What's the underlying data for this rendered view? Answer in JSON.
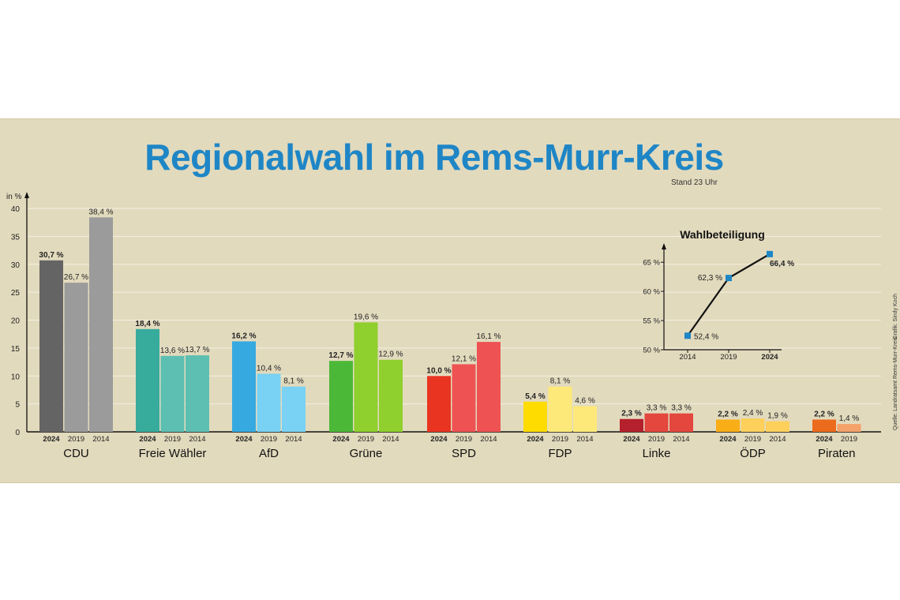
{
  "title": "Regionalwahl im Rems-Murr-Kreis",
  "subtitle": "Stand 23 Uhr",
  "credits": {
    "source": "Quelle: Landratsamt Rems-Murr-Kreis",
    "graphic": "Grafik: Sindy Koch"
  },
  "chart_data": [
    {
      "type": "bar",
      "ylabel": "in %",
      "ylim": [
        0,
        40
      ],
      "yticks": [
        0,
        5,
        10,
        15,
        20,
        25,
        30,
        35,
        40
      ],
      "grid": true,
      "years": [
        "2024",
        "2019",
        "2014"
      ],
      "parties": [
        {
          "name": "CDU",
          "values": [
            30.7,
            26.7,
            38.4
          ],
          "labels": [
            "30,7 %",
            "26,7 %",
            "38,4 %"
          ],
          "colors": [
            "#646464",
            "#9b9b9b",
            "#9b9b9b"
          ]
        },
        {
          "name": "Freie Wähler",
          "values": [
            18.4,
            13.6,
            13.7
          ],
          "labels": [
            "18,4 %",
            "13,6 %",
            "13,7 %"
          ],
          "colors": [
            "#37ab9c",
            "#5cbfb2",
            "#5cbfb2"
          ]
        },
        {
          "name": "AfD",
          "values": [
            16.2,
            10.4,
            8.1
          ],
          "labels": [
            "16,2 %",
            "10,4 %",
            "8,1 %"
          ],
          "colors": [
            "#36a9e1",
            "#79d1f3",
            "#79d1f3"
          ]
        },
        {
          "name": "Grüne",
          "values": [
            12.7,
            19.6,
            12.9
          ],
          "labels": [
            "12,7 %",
            "19,6 %",
            "12,9 %"
          ],
          "colors": [
            "#4cb837",
            "#8fcf2e",
            "#8fcf2e"
          ]
        },
        {
          "name": "SPD",
          "values": [
            10.0,
            12.1,
            16.1
          ],
          "labels": [
            "10,0 %",
            "12,1 %",
            "16,1 %"
          ],
          "colors": [
            "#e93422",
            "#ee5252",
            "#ee5252"
          ]
        },
        {
          "name": "FDP",
          "values": [
            5.4,
            8.1,
            4.6
          ],
          "labels": [
            "5,4 %",
            "8,1 %",
            "4,6 %"
          ],
          "colors": [
            "#ffdc00",
            "#fde97a",
            "#fde97a"
          ]
        },
        {
          "name": "Linke",
          "values": [
            2.3,
            3.3,
            3.3
          ],
          "labels": [
            "2,3 %",
            "3,3 %",
            "3,3 %"
          ],
          "colors": [
            "#b4202b",
            "#e3473d",
            "#e3473d"
          ]
        },
        {
          "name": "ÖDP",
          "values": [
            2.2,
            2.4,
            1.9
          ],
          "labels": [
            "2,2 %",
            "2,4 %",
            "1,9 %"
          ],
          "colors": [
            "#f9ae17",
            "#fdd05c",
            "#fdd05c"
          ]
        },
        {
          "name": "Piraten",
          "values": [
            2.2,
            1.4
          ],
          "labels": [
            "2,2 %",
            "1,4 %"
          ],
          "colors": [
            "#ec6a1c",
            "#f4a16a"
          ]
        }
      ]
    },
    {
      "type": "line",
      "title": "Wahlbeteiligung",
      "x": [
        "2014",
        "2019",
        "2024"
      ],
      "values": [
        52.4,
        62.3,
        66.4
      ],
      "labels": [
        "52,4 %",
        "62,3 %",
        "66,4 %"
      ],
      "ylim": [
        50,
        68
      ],
      "yticks": [
        50,
        55,
        60,
        65
      ],
      "ytick_labels": [
        "50 %",
        "55 %",
        "60 %",
        "65 %"
      ],
      "marker_color": "#1f86c6"
    }
  ]
}
